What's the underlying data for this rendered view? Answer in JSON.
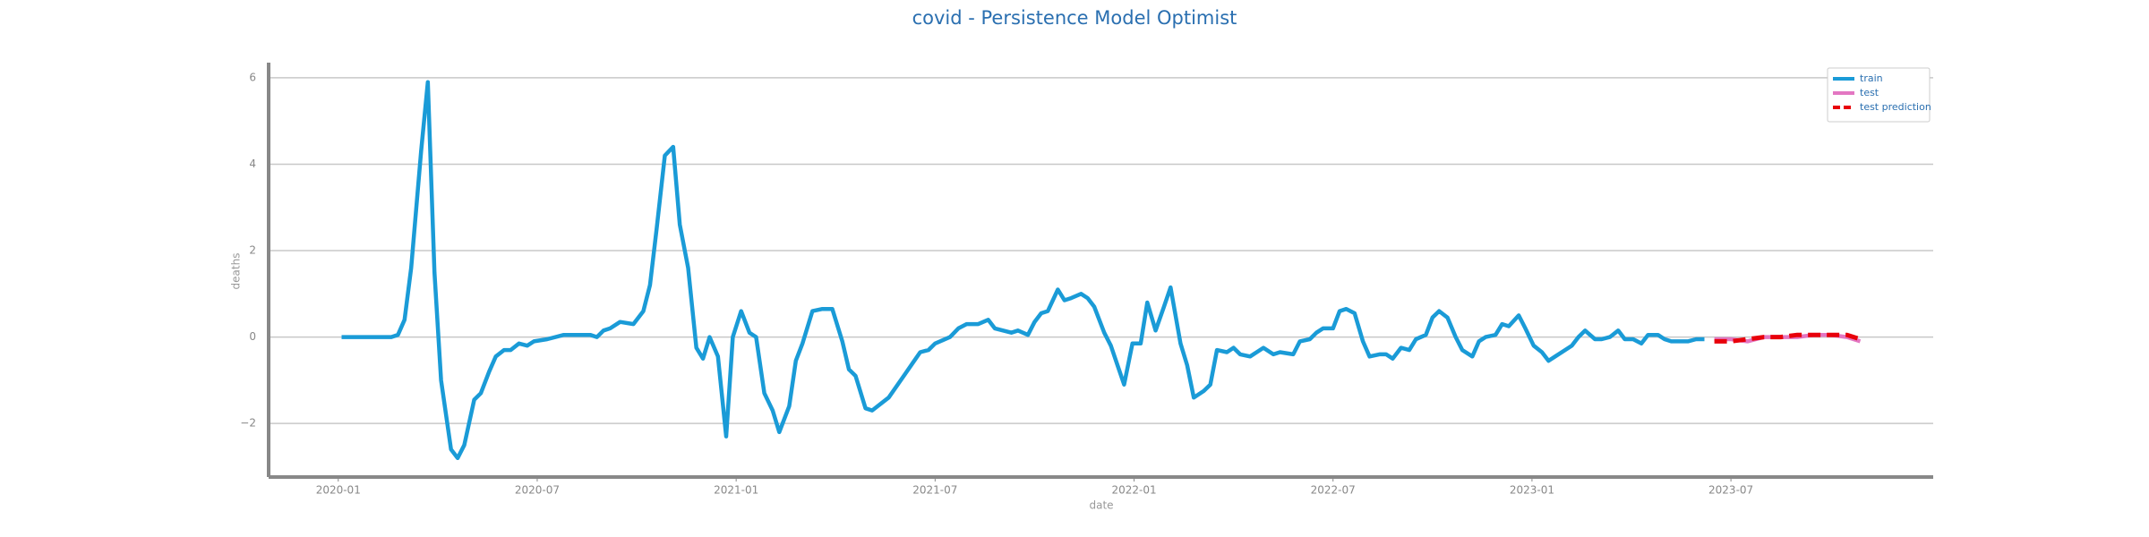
{
  "chart_data": {
    "type": "line",
    "title": "covid - Persistence Model Optimist",
    "xlabel": "date",
    "ylabel": "deaths",
    "xlim": [
      -2.1,
      48.1
    ],
    "xticks": [
      {
        "value": 0,
        "label": "2020-01"
      },
      {
        "value": 6,
        "label": "2020-07"
      },
      {
        "value": 12,
        "label": "2021-01"
      },
      {
        "value": 18,
        "label": "2021-07"
      },
      {
        "value": 24,
        "label": "2022-01"
      },
      {
        "value": 30,
        "label": "2022-07"
      },
      {
        "value": 36,
        "label": "2023-01"
      },
      {
        "value": 42,
        "label": "2023-07"
      }
    ],
    "ylim": [
      -3.24,
      6.35
    ],
    "yticks": [
      {
        "value": -2,
        "label": "−2"
      },
      0,
      2,
      4,
      6
    ],
    "grid": true,
    "legend": "upper right",
    "series": [
      {
        "name": "train",
        "color": "#1a9bd7",
        "dash": false,
        "x": [
          0.1,
          1.6,
          1.8,
          2.0,
          2.2,
          2.5,
          2.7,
          2.9,
          3.1,
          3.4,
          3.6,
          3.8,
          4.1,
          4.3,
          4.55,
          4.75,
          5.0,
          5.2,
          5.45,
          5.7,
          5.9,
          6.3,
          6.8,
          7.6,
          7.8,
          8.0,
          8.2,
          8.5,
          8.9,
          9.2,
          9.4,
          9.6,
          9.85,
          10.1,
          10.3,
          10.55,
          10.8,
          11.0,
          11.2,
          11.45,
          11.7,
          11.9,
          12.15,
          12.4,
          12.6,
          12.85,
          13.1,
          13.3,
          13.6,
          13.8,
          14.0,
          14.3,
          14.6,
          14.9,
          15.2,
          15.4,
          15.6,
          15.9,
          16.1,
          16.6,
          17.1,
          17.55,
          17.8,
          18.0,
          18.45,
          18.7,
          18.95,
          19.3,
          19.6,
          19.8,
          20.3,
          20.5,
          20.8,
          21.0,
          21.2,
          21.4,
          21.7,
          21.9,
          22.1,
          22.4,
          22.6,
          22.8,
          23.1,
          23.3,
          23.5,
          23.7,
          23.95,
          24.2,
          24.4,
          24.65,
          24.9,
          25.1,
          25.4,
          25.6,
          25.8,
          26.1,
          26.3,
          26.5,
          26.8,
          27.0,
          27.2,
          27.5,
          27.7,
          27.9,
          28.2,
          28.4,
          28.8,
          29.0,
          29.3,
          29.5,
          29.7,
          30.0,
          30.2,
          30.4,
          30.65,
          30.9,
          31.1,
          31.4,
          31.6,
          31.8,
          32.05,
          32.3,
          32.5,
          32.8,
          33.0,
          33.2,
          33.45,
          33.7,
          33.9,
          34.2,
          34.4,
          34.6,
          34.9,
          35.1,
          35.3,
          35.6,
          35.8,
          36.05,
          36.3,
          36.5,
          36.7,
          37.0,
          37.2,
          37.4,
          37.6,
          37.9,
          38.1,
          38.35,
          38.6,
          38.8,
          39.05,
          39.3,
          39.5,
          39.8,
          40.0,
          40.2,
          40.5,
          40.7,
          40.95,
          41.2
        ],
        "values": [
          0,
          0,
          0.05,
          0.4,
          1.6,
          4.3,
          5.9,
          1.5,
          -1.0,
          -2.6,
          -2.8,
          -2.5,
          -1.45,
          -1.3,
          -0.8,
          -0.45,
          -0.3,
          -0.3,
          -0.15,
          -0.2,
          -0.1,
          -0.05,
          0.05,
          0.05,
          0.0,
          0.15,
          0.2,
          0.35,
          0.3,
          0.6,
          1.2,
          2.5,
          4.2,
          4.4,
          2.6,
          1.6,
          -0.25,
          -0.5,
          0.0,
          -0.45,
          -2.3,
          0.0,
          0.6,
          0.1,
          0.0,
          -1.3,
          -1.7,
          -2.2,
          -1.6,
          -0.55,
          -0.15,
          0.6,
          0.65,
          0.65,
          -0.1,
          -0.75,
          -0.9,
          -1.65,
          -1.7,
          -1.4,
          -0.85,
          -0.35,
          -0.3,
          -0.15,
          0.0,
          0.2,
          0.3,
          0.3,
          0.4,
          0.2,
          0.1,
          0.15,
          0.05,
          0.35,
          0.55,
          0.6,
          1.1,
          0.85,
          0.9,
          1.0,
          0.9,
          0.7,
          0.1,
          -0.2,
          -0.65,
          -1.1,
          -0.15,
          -0.15,
          0.8,
          0.15,
          0.7,
          1.15,
          -0.15,
          -0.65,
          -1.4,
          -1.25,
          -1.1,
          -0.3,
          -0.35,
          -0.25,
          -0.4,
          -0.45,
          -0.35,
          -0.25,
          -0.4,
          -0.35,
          -0.4,
          -0.1,
          -0.05,
          0.1,
          0.2,
          0.2,
          0.6,
          0.65,
          0.55,
          -0.1,
          -0.45,
          -0.4,
          -0.4,
          -0.5,
          -0.25,
          -0.3,
          -0.05,
          0.05,
          0.45,
          0.6,
          0.45,
          0.0,
          -0.3,
          -0.45,
          -0.1,
          0.0,
          0.05,
          0.3,
          0.25,
          0.5,
          0.2,
          -0.2,
          -0.35,
          -0.55,
          -0.45,
          -0.3,
          -0.2,
          0.0,
          0.15,
          -0.05,
          -0.05,
          0.0,
          0.15,
          -0.05,
          -0.05,
          -0.15,
          0.05,
          0.05,
          -0.05,
          -0.1,
          -0.1,
          -0.1,
          -0.05,
          -0.05
        ]
      },
      {
        "name": "test",
        "color": "#e377c2",
        "dash": false,
        "x": [
          41.5,
          42.0,
          42.5,
          43.0,
          43.5,
          44.0,
          44.5,
          45.0,
          45.5,
          45.9
        ],
        "values": [
          -0.05,
          -0.05,
          -0.1,
          0.0,
          0.0,
          0.0,
          0.05,
          0.05,
          0.0,
          -0.1
        ]
      },
      {
        "name": "test prediction",
        "color": "#e8000b",
        "dash": true,
        "x": [
          41.5,
          42.0,
          42.5,
          43.0,
          43.5,
          44.0,
          44.5,
          45.0,
          45.5,
          45.9
        ],
        "values": [
          -0.1,
          -0.1,
          -0.05,
          0.0,
          0.0,
          0.05,
          0.05,
          0.05,
          0.05,
          -0.05
        ]
      }
    ]
  }
}
